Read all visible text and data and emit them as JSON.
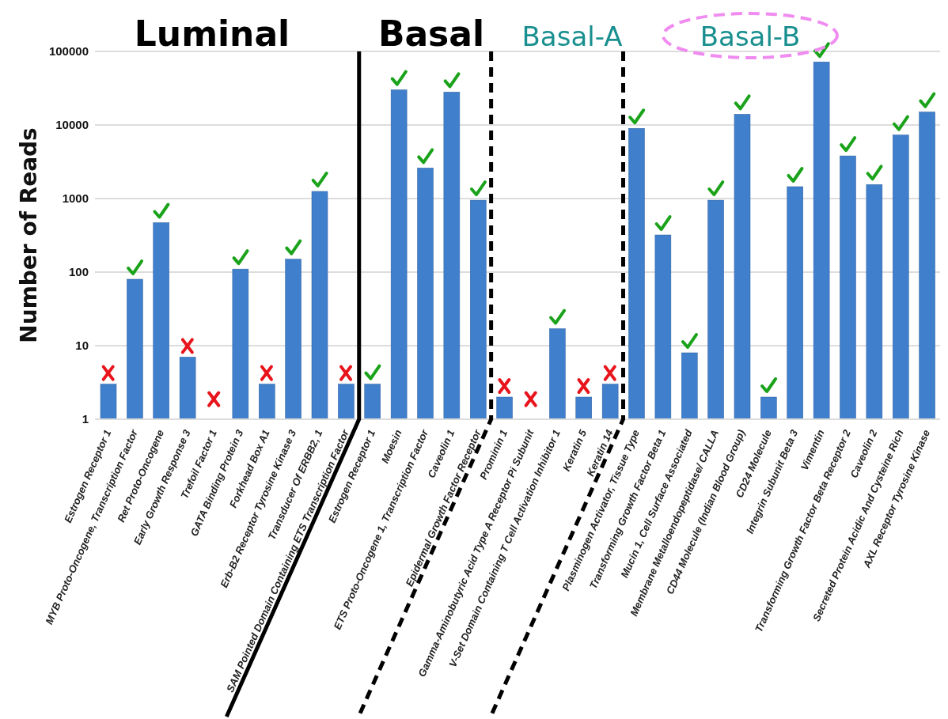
{
  "chart_data": {
    "type": "bar",
    "ylabel": "Number of Reads",
    "categories": [
      "Estrogen Receptor 1",
      "MYB Proto-Oncogene, Transcription Factor",
      "Ret Proto-Oncogene",
      "Early Growth Response 3",
      "Trefoil Factor 1",
      "GATA Binding Protein 3",
      "Forkhead Box A1",
      "Erb-B2 Receptor Tyrosine Kinase 3",
      "Transducer Of ERBB2, 1",
      "SAM Pointed Domain Containing ETS Transcription Factor",
      "Estrogen Receptor 1",
      "Moesin",
      "ETS Proto-Oncogene 1, Transcription Factor",
      "Caveolin 1",
      "Epidermal Growth Factor Receptor",
      "Prominin 1",
      "Gamma-Aminobutyric Acid Type A Receptor Pi Subunit",
      "V-Set Domain Containing T Cell Activation Inhibitor 1",
      "Keratin 5",
      "Keratin 14",
      "Plasminogen Activator, Tissue Type",
      "Transforming Growth Factor Beta 1",
      "Mucin 1, Cell Surface Associated",
      "Membrane Metalloendopeptidase/ CALLA",
      "CD44 Molecule (Indian Blood Group)",
      "CD24 Molecule",
      "Integrin Subunit Beta 3",
      "Vimentin",
      "Transforming Growth Factor Beta Receptor 2",
      "Caveolin 2",
      "Secreted Protein Acidic And Cysteine Rich",
      "AXL Receptor Tyrosine Kinase"
    ],
    "values": [
      3,
      80,
      470,
      7,
      null,
      110,
      3,
      150,
      1250,
      3,
      3,
      30000,
      2600,
      28000,
      950,
      2,
      null,
      17,
      2,
      3,
      9000,
      320,
      8,
      950,
      14000,
      2,
      1450,
      72000,
      3800,
      1550,
      7300,
      15000
    ],
    "color": "#3f7fcc",
    "ylim": [
      1,
      100000
    ],
    "yticks": [
      1,
      10,
      100,
      1000,
      10000,
      100000
    ],
    "log": "y",
    "grid": "y",
    "annotations": [
      "Luminal",
      "Basal",
      "Basal-A",
      "Basal-B"
    ]
  }
}
